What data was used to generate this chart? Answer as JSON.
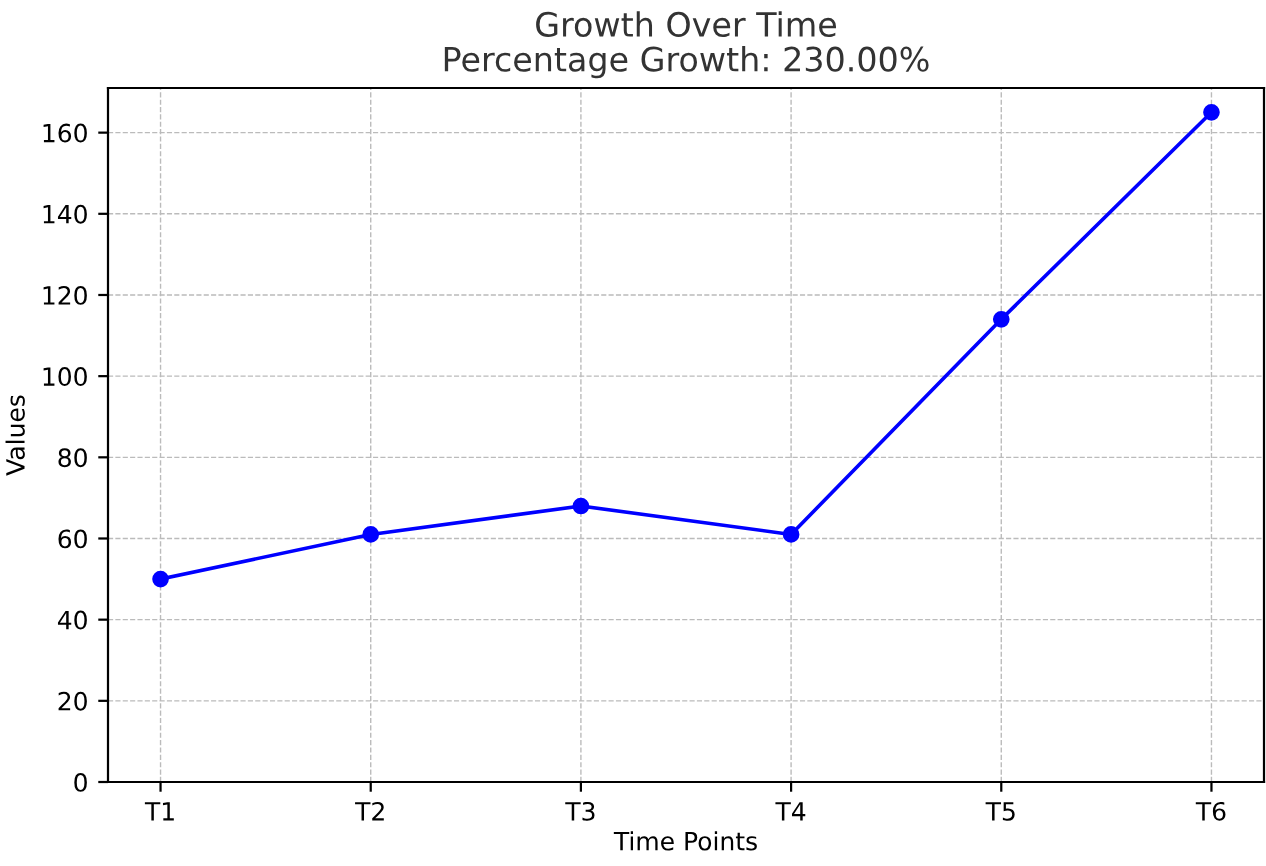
{
  "chart_data": {
    "type": "line",
    "title": "Growth Over Time",
    "subtitle": "Percentage Growth: 230.00%",
    "xlabel": "Time Points",
    "ylabel": "Values",
    "categories": [
      "T1",
      "T2",
      "T3",
      "T4",
      "T5",
      "T6"
    ],
    "series": [
      {
        "color": "#0000ff",
        "values": [
          50,
          61,
          68,
          61,
          114,
          165
        ]
      }
    ],
    "ylim": [
      0,
      171
    ],
    "yticks": [
      0,
      20,
      40,
      60,
      80,
      100,
      120,
      140,
      160
    ],
    "grid": true,
    "marker": "circle",
    "line_style": "solid"
  }
}
